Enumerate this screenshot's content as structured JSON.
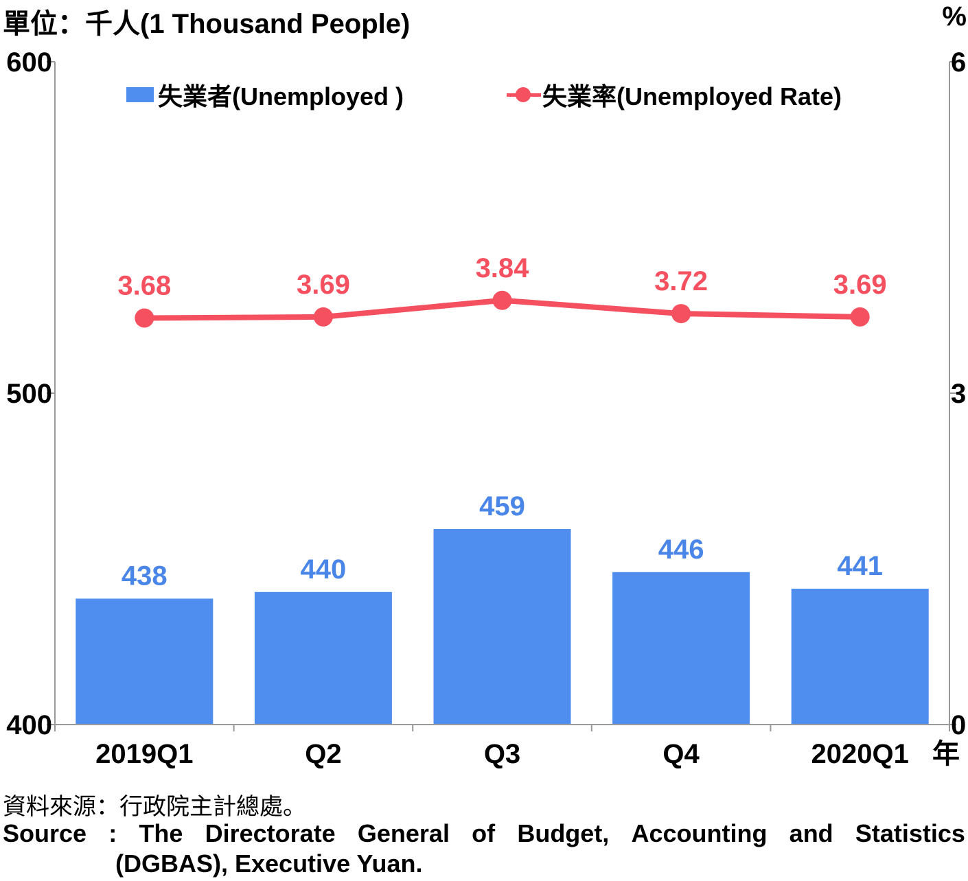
{
  "header": {
    "unit_left": "單位：千人(1 Thousand People)",
    "unit_right": "%"
  },
  "legend": {
    "bar_label": "失業者(Unemployed )",
    "line_label": "失業率(Unemployed Rate)"
  },
  "source": {
    "zh": "資料來源：行政院主計總處。",
    "en_words": [
      "Source",
      ":",
      "The",
      "Directorate",
      "General",
      "of",
      "Budget,",
      "Accounting",
      "and",
      "Statistics"
    ],
    "en_line2": "(DGBAS), Executive Yuan."
  },
  "colors": {
    "bar": "#4f8def",
    "bar_label": "#4a86e8",
    "line": "#f4505f",
    "axis": "#999999"
  },
  "chart_data": {
    "type": "bar",
    "categories": [
      "2019Q1",
      "Q2",
      "Q3",
      "Q4",
      "2020Q1"
    ],
    "x_unit": "年",
    "series": [
      {
        "name": "失業者(Unemployed )",
        "type": "bar",
        "axis": "left",
        "values": [
          438,
          440,
          459,
          446,
          441
        ]
      },
      {
        "name": "失業率(Unemployed Rate)",
        "type": "line",
        "axis": "right",
        "values": [
          3.68,
          3.69,
          3.84,
          3.72,
          3.69
        ]
      }
    ],
    "ylim_left": [
      400,
      600
    ],
    "yticks_left": [
      400,
      500,
      600
    ],
    "ylim_right": [
      0,
      6
    ],
    "yticks_right": [
      0,
      3,
      6
    ],
    "grid": false,
    "legend_position": "top"
  }
}
